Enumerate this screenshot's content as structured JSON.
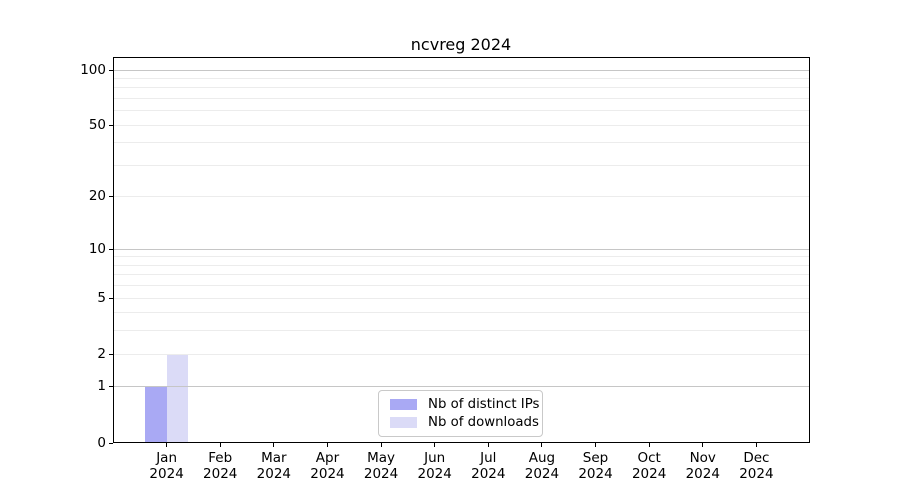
{
  "chart_data": {
    "type": "bar",
    "title": "ncvreg 2024",
    "categories": [
      "Jan 2024",
      "Feb 2024",
      "Mar 2024",
      "Apr 2024",
      "May 2024",
      "Jun 2024",
      "Jul 2024",
      "Aug 2024",
      "Sep 2024",
      "Oct 2024",
      "Nov 2024",
      "Dec 2024"
    ],
    "months": [
      "Jan",
      "Feb",
      "Mar",
      "Apr",
      "May",
      "Jun",
      "Jul",
      "Aug",
      "Sep",
      "Oct",
      "Nov",
      "Dec"
    ],
    "year_label": "2024",
    "series": [
      {
        "name": "Nb of distinct IPs",
        "color": "#a9a9f4",
        "values": [
          1,
          0,
          0,
          0,
          0,
          0,
          0,
          0,
          0,
          0,
          0,
          0
        ]
      },
      {
        "name": "Nb of downloads",
        "color": "#dbdbf7",
        "values": [
          2,
          0,
          0,
          0,
          0,
          0,
          0,
          0,
          0,
          0,
          0,
          0
        ]
      }
    ],
    "xlabel": "",
    "ylabel": "",
    "y_axis": {
      "scale": "log1p",
      "tick_values": [
        0,
        1,
        2,
        5,
        10,
        20,
        50,
        100
      ],
      "major_gridline_values": [
        1,
        10,
        100
      ],
      "ylim": [
        0,
        117
      ]
    },
    "grid": "horizontal",
    "legend_position": "lower-center-inside"
  },
  "legend": {
    "items": [
      {
        "label": "Nb of distinct IPs"
      },
      {
        "label": "Nb of downloads"
      }
    ]
  },
  "colors": {
    "bar_distinct_ips": "#a9a9f4",
    "bar_downloads": "#dbdbf7",
    "grid_major": "#c6c6c6",
    "grid_minor": "#ececec",
    "axis": "#000000",
    "legend_border": "#c9c9c9",
    "background": "#ffffff",
    "text": "#000000"
  }
}
